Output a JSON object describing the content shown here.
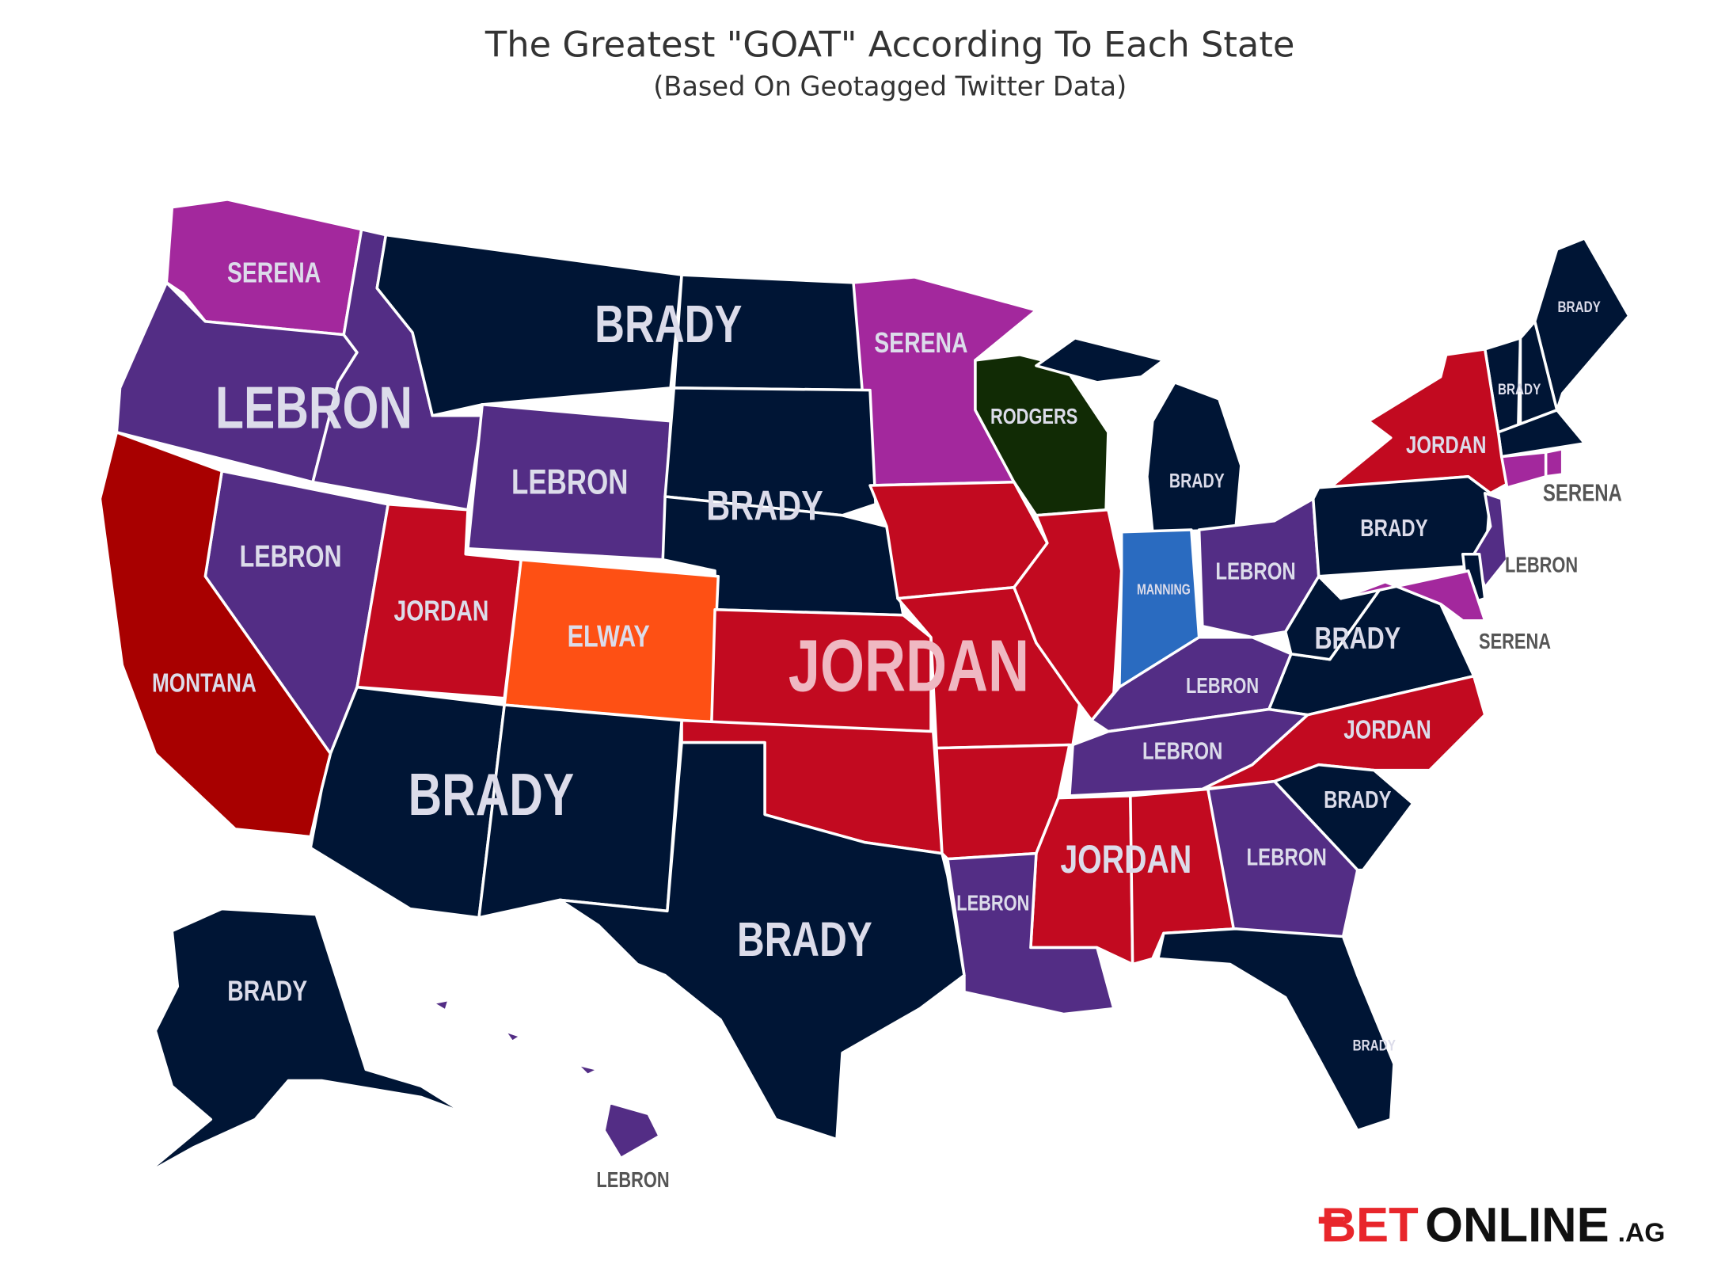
{
  "title": "The Greatest \"GOAT\" According To Each State",
  "subtitle": "(Based On Geotagged Twitter Data)",
  "regions": [
    {
      "label": "SERENA",
      "color": "#a3289d"
    },
    {
      "label": "LEBRON",
      "color": "#532d85"
    },
    {
      "label": "BRADY",
      "color": "#001535"
    },
    {
      "label": "SERENA",
      "color": "#a3289d"
    },
    {
      "label": "RODGERS",
      "color": "#112b05"
    },
    {
      "label": "BRADY",
      "color": "#001535"
    },
    {
      "label": "BRADY",
      "color": "#001535"
    },
    {
      "label": "JORDAN",
      "color": "#c20a20"
    },
    {
      "label": "SERENA",
      "color": "#a3289d"
    },
    {
      "label": "BRADY",
      "color": "#001535"
    },
    {
      "label": "LEBRON",
      "color": "#532d85"
    },
    {
      "label": "BRADY",
      "color": "#001535"
    },
    {
      "label": "LEBRON",
      "color": "#532d85"
    },
    {
      "label": "JORDAN",
      "color": "#c20a20"
    },
    {
      "label": "ELWAY",
      "color": "#fe5014"
    },
    {
      "label": "JORDAN",
      "color": "#c20a20"
    },
    {
      "label": "MANNING",
      "color": "#2a6bc0"
    },
    {
      "label": "LEBRON",
      "color": "#532d85"
    },
    {
      "label": "BRADY",
      "color": "#001535"
    },
    {
      "label": "LEBRON",
      "color": "#532d85"
    },
    {
      "label": "BRADY",
      "color": "#001535"
    },
    {
      "label": "SERENA",
      "color": "#a3289d"
    },
    {
      "label": "MONTANA",
      "color": "#a80000"
    },
    {
      "label": "LEBRON",
      "color": "#532d85"
    },
    {
      "label": "LEBRON",
      "color": "#532d85"
    },
    {
      "label": "JORDAN",
      "color": "#c20a20"
    },
    {
      "label": "BRADY",
      "color": "#001535"
    },
    {
      "label": "BRADY",
      "color": "#001535"
    },
    {
      "label": "JORDAN",
      "color": "#c20a20"
    },
    {
      "label": "LEBRON",
      "color": "#532d85"
    },
    {
      "label": "LEBRON",
      "color": "#532d85"
    },
    {
      "label": "BRADY",
      "color": "#001535"
    },
    {
      "label": "BRADY",
      "color": "#001535"
    },
    {
      "label": "BRADY",
      "color": "#001535"
    },
    {
      "label": "LEBRON",
      "color": "#532d85"
    }
  ],
  "logo": {
    "bet": "BET",
    "online": "ONLINE",
    "ag": ".AG"
  }
}
